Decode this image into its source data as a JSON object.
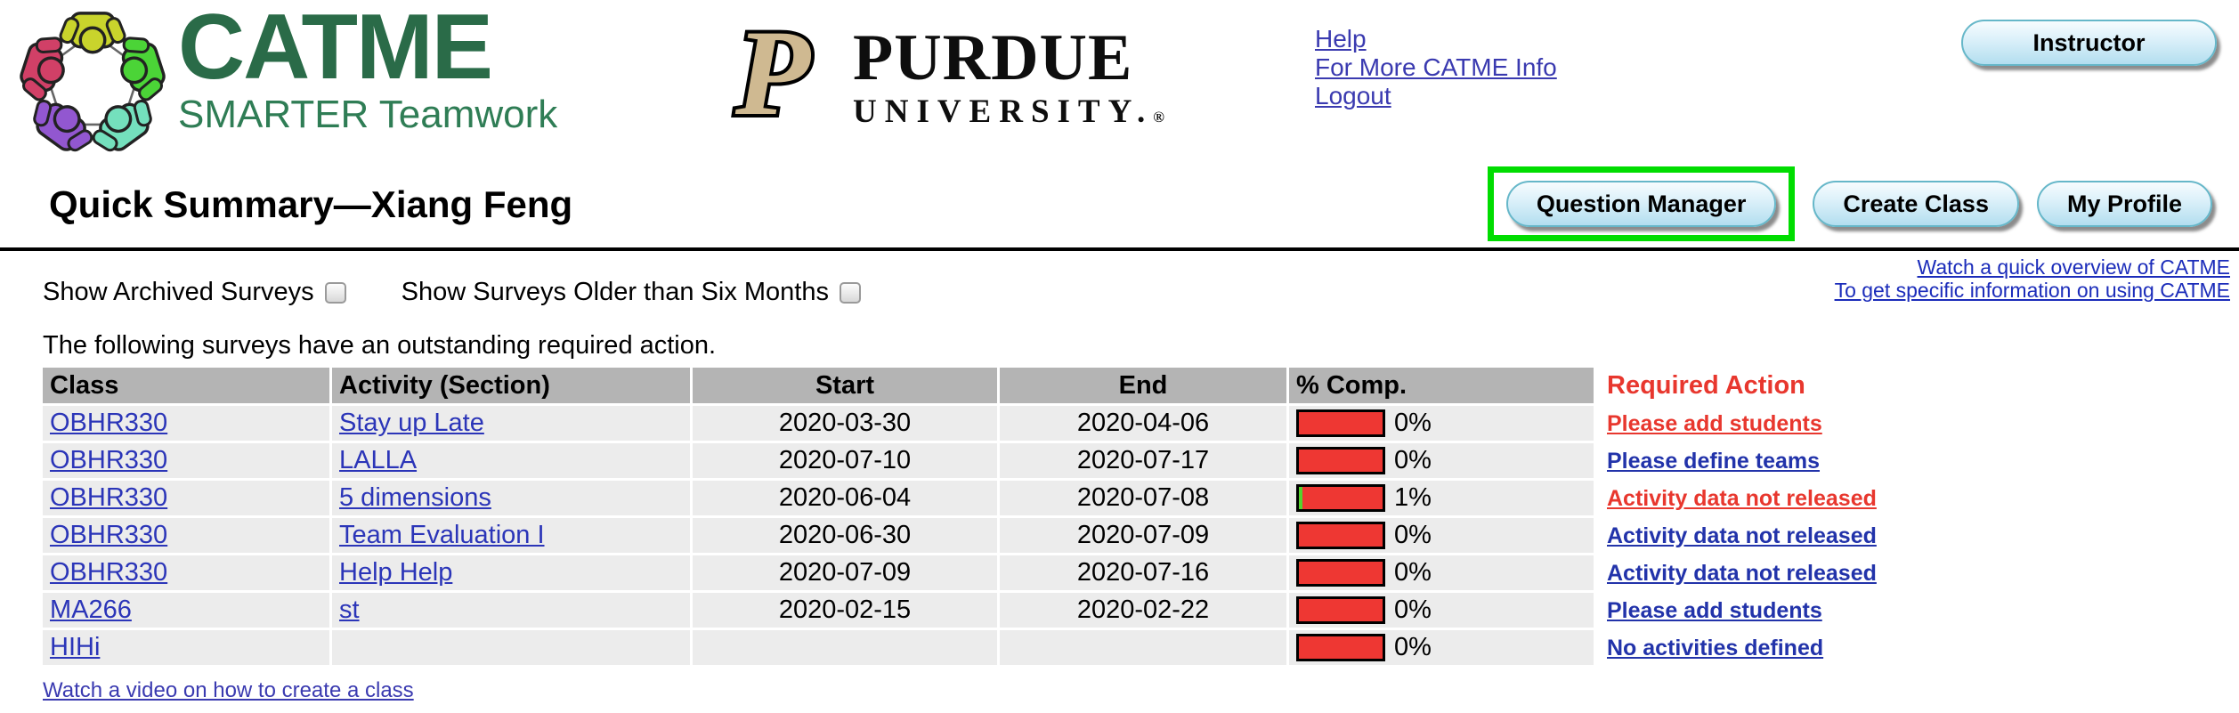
{
  "header": {
    "catme_logo": {
      "title": "CATME",
      "subtitle": "SMARTER Teamwork"
    },
    "purdue_logo": {
      "line1": "PURDUE",
      "line2": "UNIVERSITY.",
      "registered": "®"
    },
    "links": [
      {
        "label": "Help"
      },
      {
        "label": "For More CATME Info"
      },
      {
        "label": "Logout"
      }
    ],
    "role_button_label": "Instructor"
  },
  "title_bar": {
    "page_title": "Quick Summary—Xiang Feng",
    "buttons": [
      {
        "label": "Question Manager",
        "highlighted": true
      },
      {
        "label": "Create Class",
        "highlighted": false
      },
      {
        "label": "My Profile",
        "highlighted": false
      }
    ]
  },
  "overview_links": [
    {
      "label": "Watch a quick overview of CATME"
    },
    {
      "label": "To get specific information on using CATME"
    }
  ],
  "filters": [
    {
      "label": "Show Archived Surveys",
      "checked": false
    },
    {
      "label": "Show Surveys Older than Six Months",
      "checked": false
    }
  ],
  "intro_text": "The following surveys have an outstanding required action.",
  "table": {
    "headers": [
      "Class",
      "Activity (Section)",
      "Start",
      "End",
      "% Comp.",
      "Required Action"
    ],
    "rows": [
      {
        "class": "OBHR330",
        "activity": "Stay up Late",
        "start": "2020-03-30",
        "end": "2020-04-06",
        "pct": "0%",
        "pct_value": 0,
        "action": "Please add students",
        "action_style": "red"
      },
      {
        "class": "OBHR330",
        "activity": "LALLA",
        "start": "2020-07-10",
        "end": "2020-07-17",
        "pct": "0%",
        "pct_value": 0,
        "action": "Please define teams",
        "action_style": "blue"
      },
      {
        "class": "OBHR330",
        "activity": "5 dimensions",
        "start": "2020-06-04",
        "end": "2020-07-08",
        "pct": "1%",
        "pct_value": 1,
        "action": "Activity data not released",
        "action_style": "red"
      },
      {
        "class": "OBHR330",
        "activity": "Team Evaluation I",
        "start": "2020-06-30",
        "end": "2020-07-09",
        "pct": "0%",
        "pct_value": 0,
        "action": "Activity data not released",
        "action_style": "blue"
      },
      {
        "class": "OBHR330",
        "activity": "Help Help",
        "start": "2020-07-09",
        "end": "2020-07-16",
        "pct": "0%",
        "pct_value": 0,
        "action": "Activity data not released",
        "action_style": "blue"
      },
      {
        "class": "MA266",
        "activity": "st",
        "start": "2020-02-15",
        "end": "2020-02-22",
        "pct": "0%",
        "pct_value": 0,
        "action": "Please add students",
        "action_style": "blue"
      },
      {
        "class": "HIHi",
        "activity": "",
        "start": "",
        "end": "",
        "pct": "0%",
        "pct_value": 0,
        "action": "No activities defined",
        "action_style": "blue"
      }
    ]
  },
  "footer_link": "Watch a video on how to create a class",
  "colors": {
    "highlight_green": "#00dd00",
    "bar_red": "#ee3733",
    "bar_green": "#55d42e",
    "action_red": "#e8372e",
    "action_blue": "#2233aa",
    "catme_green": "#2a6b48",
    "purdue_gold": "#cfb991",
    "header_gray": "#b4b4b4",
    "row_gray": "#ececec"
  }
}
